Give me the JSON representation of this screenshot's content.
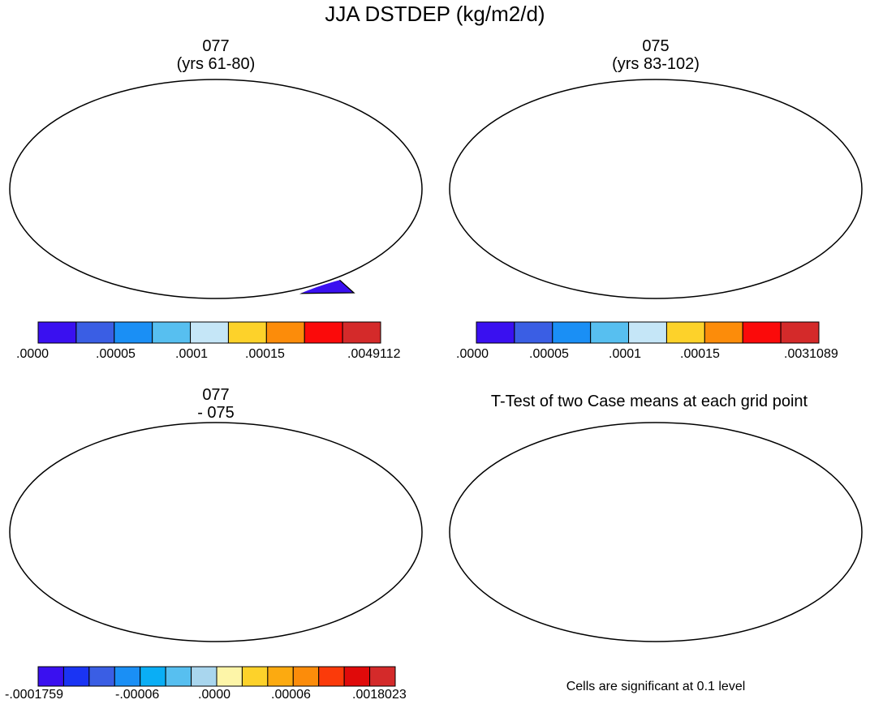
{
  "figure": {
    "title": "JJA DSTDEP (kg/m2/d)"
  },
  "panels": [
    {
      "id": "p1",
      "title_line1": "077",
      "title_line2": "(yrs 61-80)"
    },
    {
      "id": "p2",
      "title_line1": "075",
      "title_line2": "(yrs 83-102)"
    },
    {
      "id": "p3",
      "title_line1": "077",
      "title_line2": "- 075"
    },
    {
      "id": "p4",
      "title_line1": "T-Test of two Case means at each grid point",
      "title_line2": ""
    }
  ],
  "colorbars": [
    {
      "id": "cb1",
      "colors": [
        "#3a10f0",
        "#3a5ee4",
        "#1a8ff5",
        "#57bff0",
        "#c5e6f7",
        "#fdd22a",
        "#fc8c0a",
        "#fb0a0a",
        "#d42a2a"
      ],
      "labels": [
        ".0000",
        ".00005",
        ".0001",
        ".00015",
        ".0049112"
      ]
    },
    {
      "id": "cb2",
      "colors": [
        "#3a10f0",
        "#3a5ee4",
        "#1a8ff5",
        "#57bff0",
        "#c5e6f7",
        "#fdd22a",
        "#fc8c0a",
        "#fb0a0a",
        "#d42a2a"
      ],
      "labels": [
        ".0000",
        ".00005",
        ".0001",
        ".00015",
        ".0031089"
      ]
    },
    {
      "id": "cb3",
      "colors": [
        "#3a10f0",
        "#1a34f4",
        "#3a5ee4",
        "#1a8ff5",
        "#0aaef5",
        "#57bff0",
        "#a9d6ee",
        "#fdf5a8",
        "#fdd22a",
        "#fcaa10",
        "#fc8c0a",
        "#fb3a0a",
        "#e00a0a",
        "#d42a2a"
      ],
      "labels": [
        "-.0001759",
        "-.00006",
        ".0000",
        ".00006",
        ".0018023"
      ]
    }
  ],
  "significance_note": "Cells are significant at 0.1 level",
  "colors": {
    "background": "#ffffff",
    "land_low": "#3a10f0",
    "diff_positive_low": "#fdf5a8",
    "diff_negative_low": "#a9d6ee",
    "significant": "#fb0a0a"
  }
}
